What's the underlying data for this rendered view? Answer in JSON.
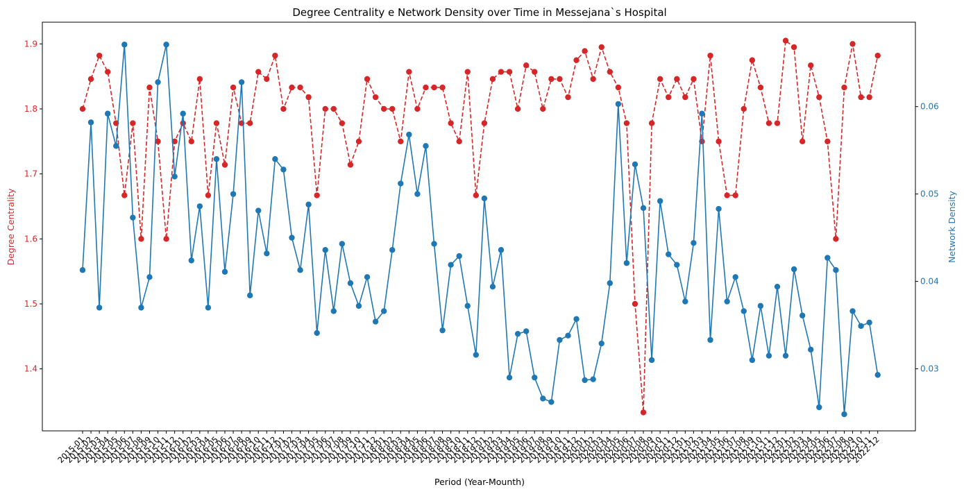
{
  "chart_data": {
    "type": "line",
    "title": "Degree Centrality e Network Density over Time in Messejana`s Hospital",
    "xlabel": "Period (Year-Mounth)",
    "ylabel_left": "Degree Centrality",
    "ylabel_right": "Network Density",
    "colors": {
      "left": "#d62728",
      "right": "#1f77b4"
    },
    "ylim_left": [
      1.3046,
      1.9334
    ],
    "ylim_right": [
      0.0229,
      0.06966
    ],
    "yticks_left": [
      1.4,
      1.5,
      1.6,
      1.7,
      1.8,
      1.9
    ],
    "yticks_right": [
      0.03,
      0.04,
      0.05,
      0.06
    ],
    "yticklabels_left": [
      "1.4",
      "1.5",
      "1.6",
      "1.7",
      "1.8",
      "1.9"
    ],
    "yticklabels_right": [
      "0.03",
      "0.04",
      "0.05",
      "0.06"
    ],
    "grid": false,
    "categories": [
      "2015-01",
      "2015-02",
      "2015-03",
      "2015-04",
      "2015-05",
      "2015-06",
      "2015-07",
      "2015-08",
      "2015-09",
      "2015-10",
      "2015-11",
      "2015-12",
      "2016-01",
      "2016-02",
      "2016-03",
      "2016-04",
      "2016-05",
      "2016-06",
      "2016-07",
      "2016-08",
      "2016-09",
      "2016-10",
      "2016-11",
      "2016-12",
      "2017-01",
      "2017-02",
      "2017-03",
      "2017-04",
      "2017-05",
      "2017-06",
      "2017-07",
      "2017-08",
      "2017-09",
      "2017-10",
      "2017-11",
      "2017-12",
      "2018-01",
      "2018-02",
      "2018-03",
      "2018-04",
      "2018-05",
      "2018-06",
      "2018-07",
      "2018-08",
      "2018-09",
      "2018-10",
      "2018-11",
      "2018-12",
      "2019-01",
      "2019-02",
      "2019-03",
      "2019-04",
      "2019-05",
      "2019-06",
      "2019-07",
      "2019-08",
      "2019-09",
      "2019-10",
      "2019-11",
      "2019-12",
      "2020-01",
      "2020-02",
      "2020-03",
      "2020-04",
      "2020-05",
      "2020-06",
      "2020-07",
      "2020-08",
      "2020-09",
      "2020-10",
      "2020-11",
      "2020-12",
      "2021-01",
      "2021-02",
      "2021-03",
      "2021-04",
      "2021-05",
      "2021-06",
      "2021-07",
      "2021-08",
      "2021-09",
      "2021-10",
      "2021-11",
      "2021-12",
      "2022-01",
      "2022-02",
      "2022-03",
      "2022-04",
      "2022-05",
      "2022-06",
      "2022-07",
      "2022-08",
      "2022-09",
      "2022-10",
      "2022-11",
      "2022-12"
    ],
    "series": [
      {
        "name": "Degree Centrality",
        "axis": "left",
        "style": "dashed",
        "values": [
          1.8,
          1.846,
          1.882,
          1.857,
          1.778,
          1.667,
          1.778,
          1.6,
          1.833,
          1.75,
          1.6,
          1.75,
          1.778,
          1.75,
          1.846,
          1.667,
          1.778,
          1.714,
          1.833,
          1.778,
          1.778,
          1.857,
          1.846,
          1.882,
          1.8,
          1.833,
          1.833,
          1.818,
          1.667,
          1.8,
          1.8,
          1.778,
          1.714,
          1.75,
          1.846,
          1.818,
          1.8,
          1.8,
          1.75,
          1.857,
          1.8,
          1.833,
          1.833,
          1.833,
          1.778,
          1.75,
          1.857,
          1.667,
          1.778,
          1.846,
          1.857,
          1.857,
          1.8,
          1.867,
          1.857,
          1.8,
          1.846,
          1.846,
          1.818,
          1.875,
          1.889,
          1.846,
          1.895,
          1.857,
          1.833,
          1.778,
          1.5,
          1.333,
          1.778,
          1.846,
          1.818,
          1.846,
          1.818,
          1.846,
          1.75,
          1.882,
          1.75,
          1.667,
          1.667,
          1.8,
          1.875,
          1.833,
          1.778,
          1.778,
          1.905,
          1.895,
          1.75,
          1.867,
          1.818,
          1.75,
          1.6,
          1.833,
          1.9,
          1.818,
          1.818,
          1.882
        ]
      },
      {
        "name": "Network Density",
        "axis": "right",
        "style": "solid",
        "values": [
          0.0413,
          0.0582,
          0.037,
          0.0592,
          0.0555,
          0.0671,
          0.0473,
          0.037,
          0.0405,
          0.0628,
          0.0671,
          0.052,
          0.0592,
          0.0424,
          0.0486,
          0.037,
          0.054,
          0.0411,
          0.05,
          0.0628,
          0.0384,
          0.0481,
          0.0432,
          0.054,
          0.0528,
          0.045,
          0.0413,
          0.0488,
          0.0341,
          0.0436,
          0.0366,
          0.0443,
          0.0398,
          0.0372,
          0.0405,
          0.0354,
          0.0366,
          0.0436,
          0.0512,
          0.0568,
          0.05,
          0.0555,
          0.0443,
          0.0344,
          0.0419,
          0.0429,
          0.0372,
          0.0316,
          0.0495,
          0.0394,
          0.0436,
          0.029,
          0.034,
          0.0343,
          0.029,
          0.0266,
          0.0262,
          0.0333,
          0.0338,
          0.0357,
          0.0287,
          0.0288,
          0.0329,
          0.0398,
          0.0603,
          0.0421,
          0.0534,
          0.0484,
          0.031,
          0.0492,
          0.0431,
          0.0419,
          0.0377,
          0.0444,
          0.0592,
          0.0333,
          0.0483,
          0.0377,
          0.0405,
          0.0366,
          0.031,
          0.0372,
          0.0315,
          0.0394,
          0.0315,
          0.0414,
          0.0361,
          0.0322,
          0.0256,
          0.0427,
          0.0413,
          0.0248,
          0.0366,
          0.0349,
          0.0353,
          0.0293
        ]
      }
    ]
  }
}
